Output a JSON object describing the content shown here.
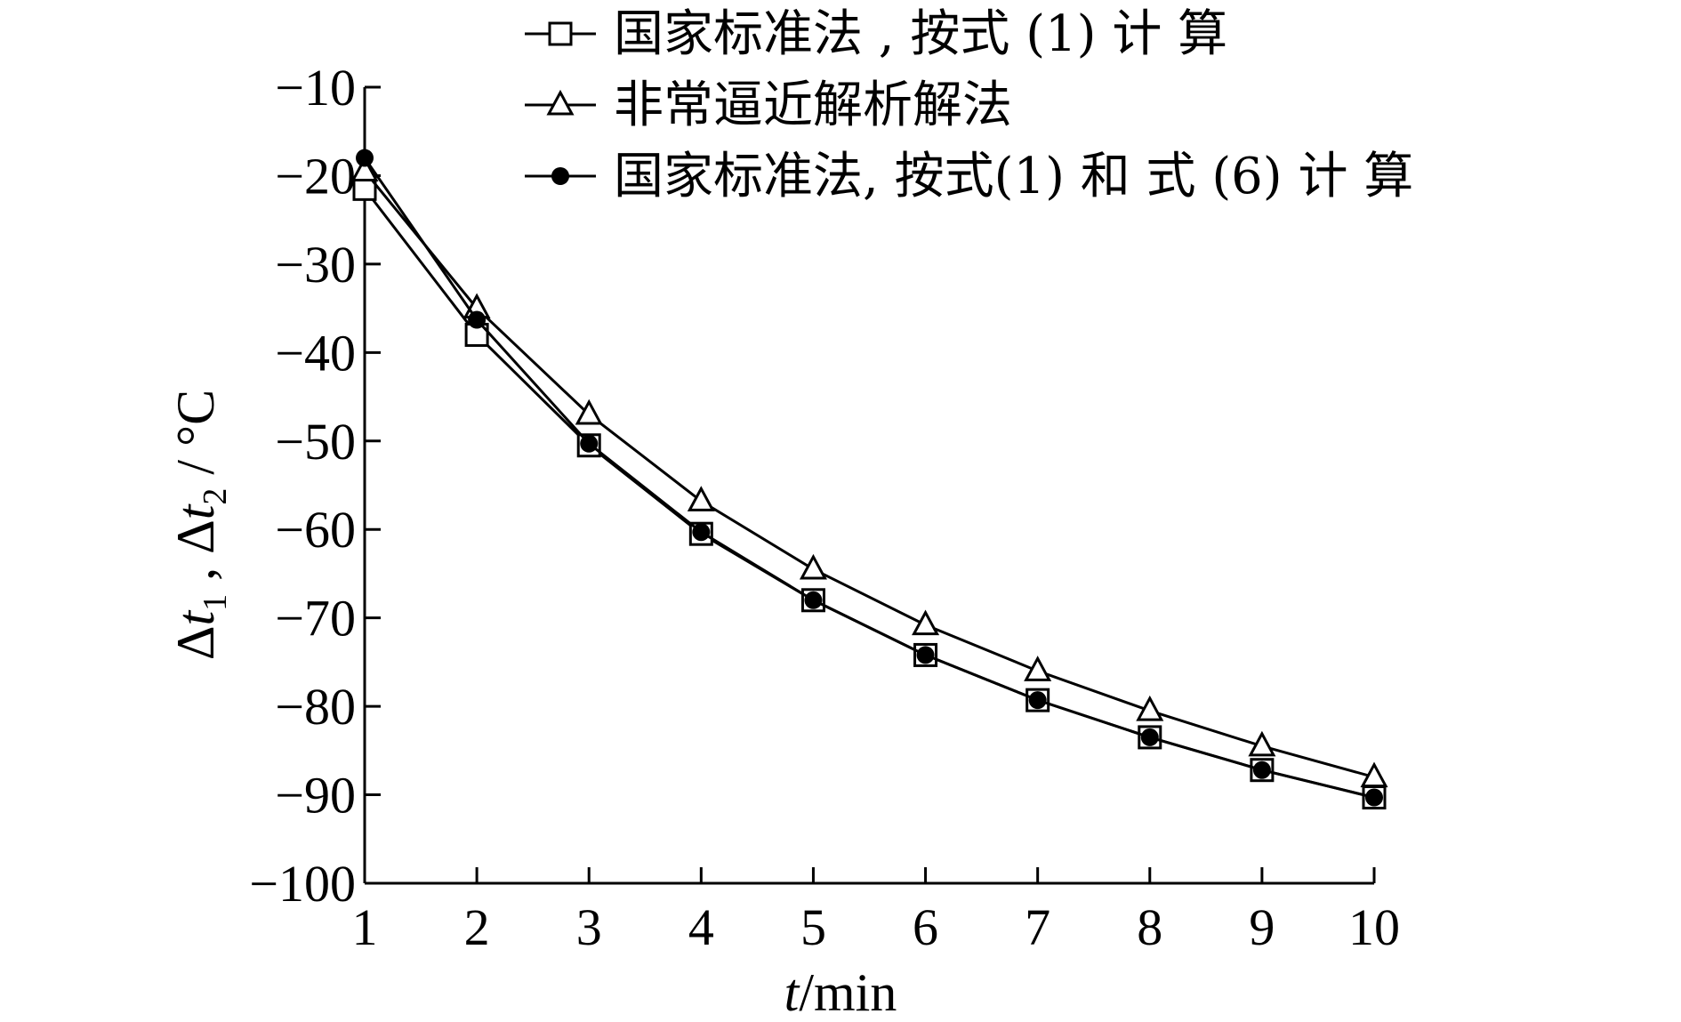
{
  "chart_data": {
    "type": "line",
    "xlabel": {
      "italic": "t",
      "rest": "/min"
    },
    "ylabel": {
      "d1": "Δ",
      "t1": "t",
      "s1": "1",
      "sep": " , ",
      "d2": "Δ",
      "t2": "t",
      "s2": "2",
      "unit": " / °C"
    },
    "xlim": [
      1,
      10
    ],
    "ylim": [
      -100,
      -10
    ],
    "x_ticks": [
      "1",
      "2",
      "3",
      "4",
      "5",
      "6",
      "7",
      "8",
      "9",
      "10"
    ],
    "y_ticks": [
      "−10",
      "−20",
      "−30",
      "−40",
      "−50",
      "−60",
      "−70",
      "−80",
      "−90",
      "−100"
    ],
    "x_tick_values": [
      1,
      2,
      3,
      4,
      5,
      6,
      7,
      8,
      9,
      10
    ],
    "y_tick_values": [
      -10,
      -20,
      -30,
      -40,
      -50,
      -60,
      -70,
      -80,
      -90,
      -100
    ],
    "grid": false,
    "legend_position": "top-right",
    "x": [
      1,
      2,
      3,
      4,
      5,
      6,
      7,
      8,
      9,
      10
    ],
    "series": [
      {
        "name": "国家标准法 , 按式 (1) 计 算",
        "marker": "square",
        "values": [
          -21.5,
          -38.0,
          -50.5,
          -60.5,
          -68.0,
          -74.2,
          -79.3,
          -83.5,
          -87.2,
          -90.3
        ]
      },
      {
        "name": "非常逼近解析解法",
        "marker": "triangle",
        "values": [
          -19.5,
          -35.0,
          -47.0,
          -56.8,
          -64.5,
          -70.8,
          -76.0,
          -80.5,
          -84.5,
          -88.0
        ]
      },
      {
        "name": "国家标准法, 按式(1) 和 式 (6) 计 算",
        "marker": "dot",
        "values": [
          -18.0,
          -36.3,
          -50.3,
          -60.3,
          -68.0,
          -74.2,
          -79.3,
          -83.5,
          -87.2,
          -90.3
        ]
      }
    ]
  }
}
